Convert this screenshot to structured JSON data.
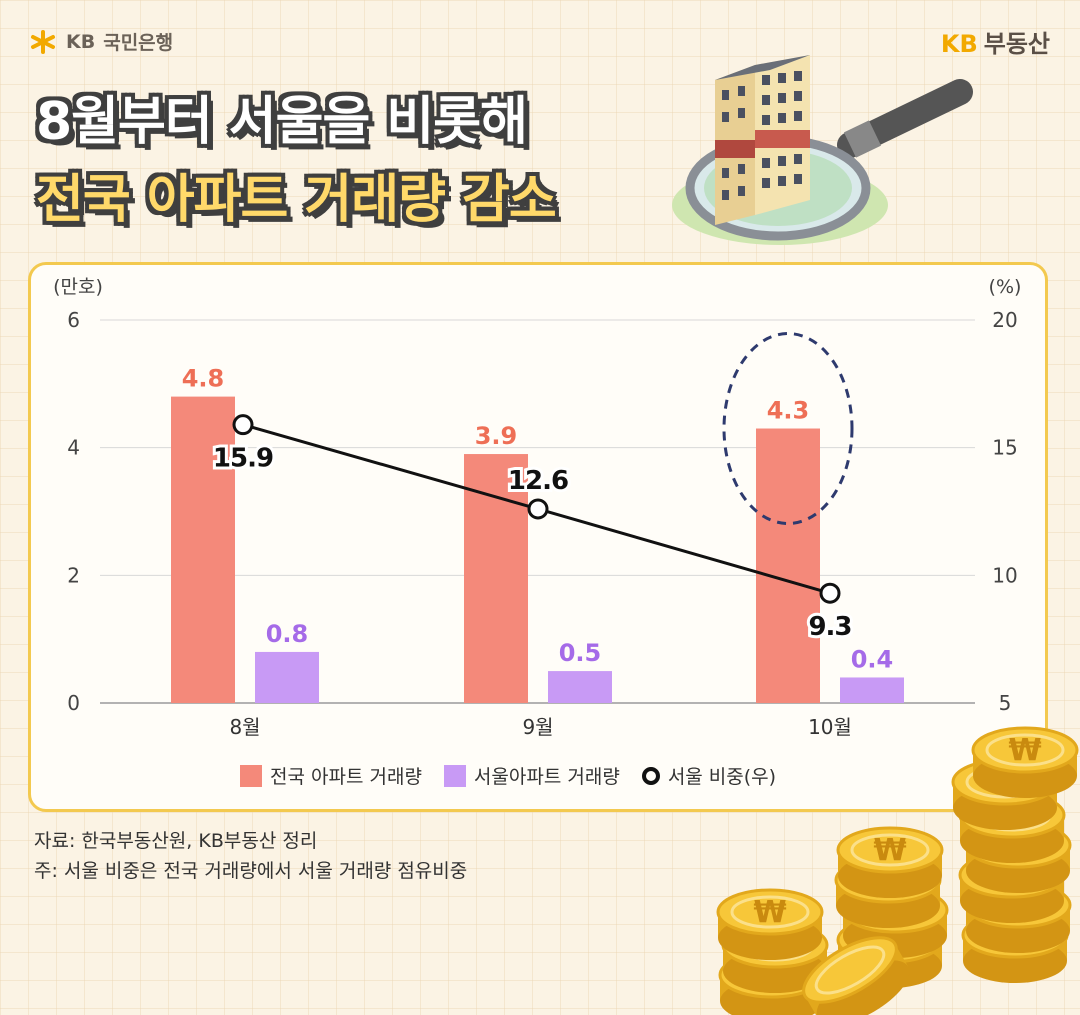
{
  "header": {
    "bank_brand": "국민은행",
    "bank_prefix": "KB",
    "service_brand_prefix": "KB",
    "service_brand": "부동산"
  },
  "title": {
    "line1": "8월부터 서울을 비롯해",
    "line2": "전국 아파트 거래량 감소"
  },
  "chart_data": {
    "type": "bar",
    "categories": [
      "8월",
      "9월",
      "10월"
    ],
    "series": [
      {
        "name": "전국 아파트 거래량",
        "type": "bar",
        "axis": "left",
        "values": [
          4.8,
          3.9,
          4.3
        ],
        "color": "#f4897a",
        "label_color": "#ee6f56"
      },
      {
        "name": "서울아파트 거래량",
        "type": "bar",
        "axis": "left",
        "values": [
          0.8,
          0.5,
          0.4
        ],
        "color": "#c89af5",
        "label_color": "#a56be8"
      },
      {
        "name": "서울 비중(우)",
        "type": "line",
        "axis": "right",
        "values": [
          15.9,
          12.6,
          9.3
        ],
        "color": "#111111"
      }
    ],
    "left_axis": {
      "unit_label": "(만호)",
      "ylim": [
        0,
        6
      ],
      "ticks": [
        "0",
        "2",
        "4",
        "6"
      ]
    },
    "right_axis": {
      "unit_label": "(%)",
      "ylim": [
        5,
        20
      ],
      "ticks": [
        "5",
        "10",
        "15",
        "20"
      ]
    },
    "highlight_category": "10월",
    "grid": true,
    "legend_position": "bottom"
  },
  "notes": {
    "source": "자료: 한국부동산원, KB부동산 정리",
    "footnote": "주: 서울 비중은 전국 거래량에서 서울 거래량 점유비중"
  },
  "decor": {
    "building_icon": "apartment-magnifier-icon",
    "coin_icon": "won-coin-stack-icon",
    "currency_symbol": "₩"
  }
}
